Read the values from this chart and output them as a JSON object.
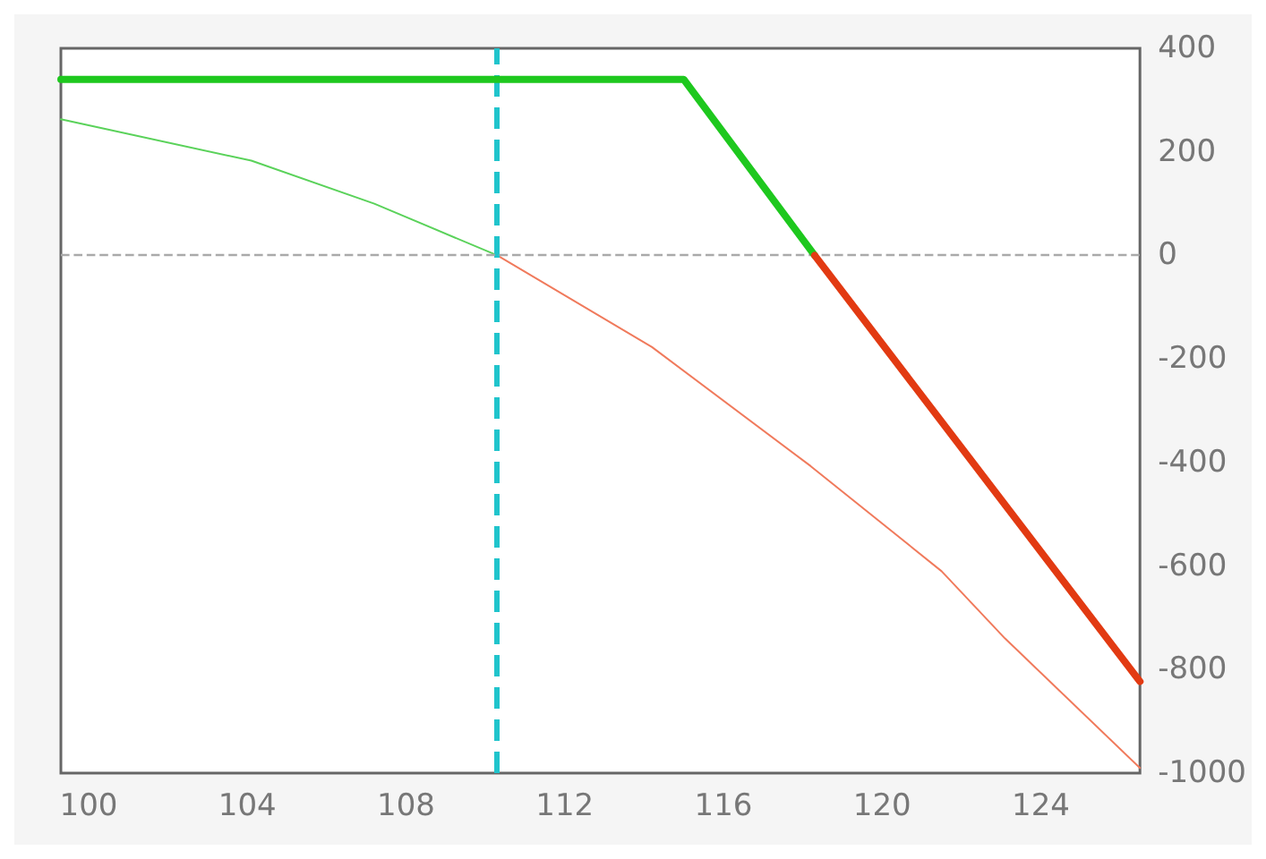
{
  "chart_data": {
    "type": "line",
    "xlim": [
      99.3,
      126.5
    ],
    "xticks": [
      100,
      104,
      108,
      112,
      116,
      120,
      124
    ],
    "ylim": [
      -1000,
      400
    ],
    "yticks": [
      400,
      200,
      0,
      -200,
      -400,
      -600,
      -800,
      -1000
    ],
    "grid": false,
    "marker": "none",
    "line_style": "solid",
    "series": [
      {
        "color": "#1ec81e",
        "x": [
          99.3,
          115,
          118.3
        ],
        "values": [
          340,
          340,
          0
        ]
      },
      {
        "color": "#e23a12",
        "x": [
          118.3,
          126.5
        ],
        "values": [
          0,
          -823
        ]
      },
      {
        "color": "#5ad25a",
        "x": [
          99.3,
          104.1,
          107.2,
          110.3
        ],
        "values": [
          263,
          183,
          100,
          0
        ]
      },
      {
        "color": "#f07a5c",
        "x": [
          110.3,
          114.2,
          118.2,
          121.5,
          123.1,
          126.5
        ],
        "values": [
          0,
          -177,
          -407,
          -610,
          -740,
          -990
        ]
      }
    ],
    "ref_lines": [
      {
        "axis": "x",
        "value": 110.3,
        "color": "#20c4cc",
        "line_style": "dashed"
      },
      {
        "axis": "y",
        "value": 0,
        "color": "#aaaaaa",
        "line_style": "dashed"
      }
    ]
  }
}
